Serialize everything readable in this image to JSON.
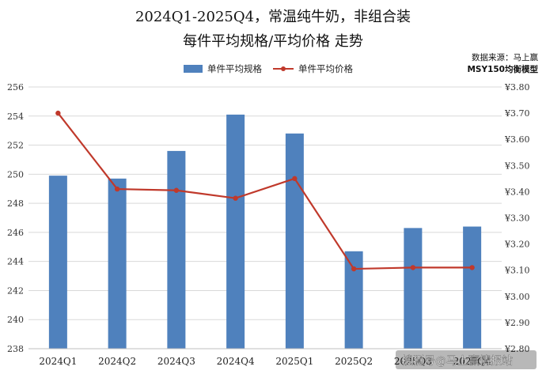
{
  "chart_data": {
    "type": "bar+line",
    "title_line1": "2024Q1-2025Q4，常温纯牛奶，非组合装",
    "title_line2": "每件平均规格/平均价格 走势",
    "source_line1": "数据来源：马上赢",
    "source_line2": "MSY150均衡模型",
    "categories": [
      "2024Q1",
      "2024Q2",
      "2024Q3",
      "2024Q4",
      "2025Q1",
      "2025Q2",
      "2025Q3",
      "2025Q4"
    ],
    "series": [
      {
        "name": "单件平均规格",
        "type": "bar",
        "axis": "left",
        "color": "#4f81bd",
        "values": [
          249.9,
          249.7,
          251.6,
          254.1,
          252.8,
          244.7,
          246.3,
          246.4
        ]
      },
      {
        "name": "单件平均价格",
        "type": "line",
        "axis": "right",
        "color": "#c0392b",
        "values": [
          3.7,
          3.41,
          3.405,
          3.375,
          3.45,
          3.105,
          3.11,
          3.11
        ]
      }
    ],
    "y_left": {
      "min": 238,
      "max": 256,
      "step": 2,
      "tick_labels": [
        "238",
        "240",
        "242",
        "244",
        "246",
        "248",
        "250",
        "252",
        "254",
        "256"
      ]
    },
    "y_right": {
      "min": 2.8,
      "max": 3.8,
      "step": 0.1,
      "tick_labels": [
        "¥2.80",
        "¥2.90",
        "¥3.00",
        "¥3.10",
        "¥3.20",
        "¥3.30",
        "¥3.40",
        "¥3.50",
        "¥3.60",
        "¥3.70",
        "¥3.80"
      ]
    },
    "grid": true,
    "legend_position": "top-left"
  },
  "watermark": {
    "text": "搜狐号@马上赢情报站"
  }
}
